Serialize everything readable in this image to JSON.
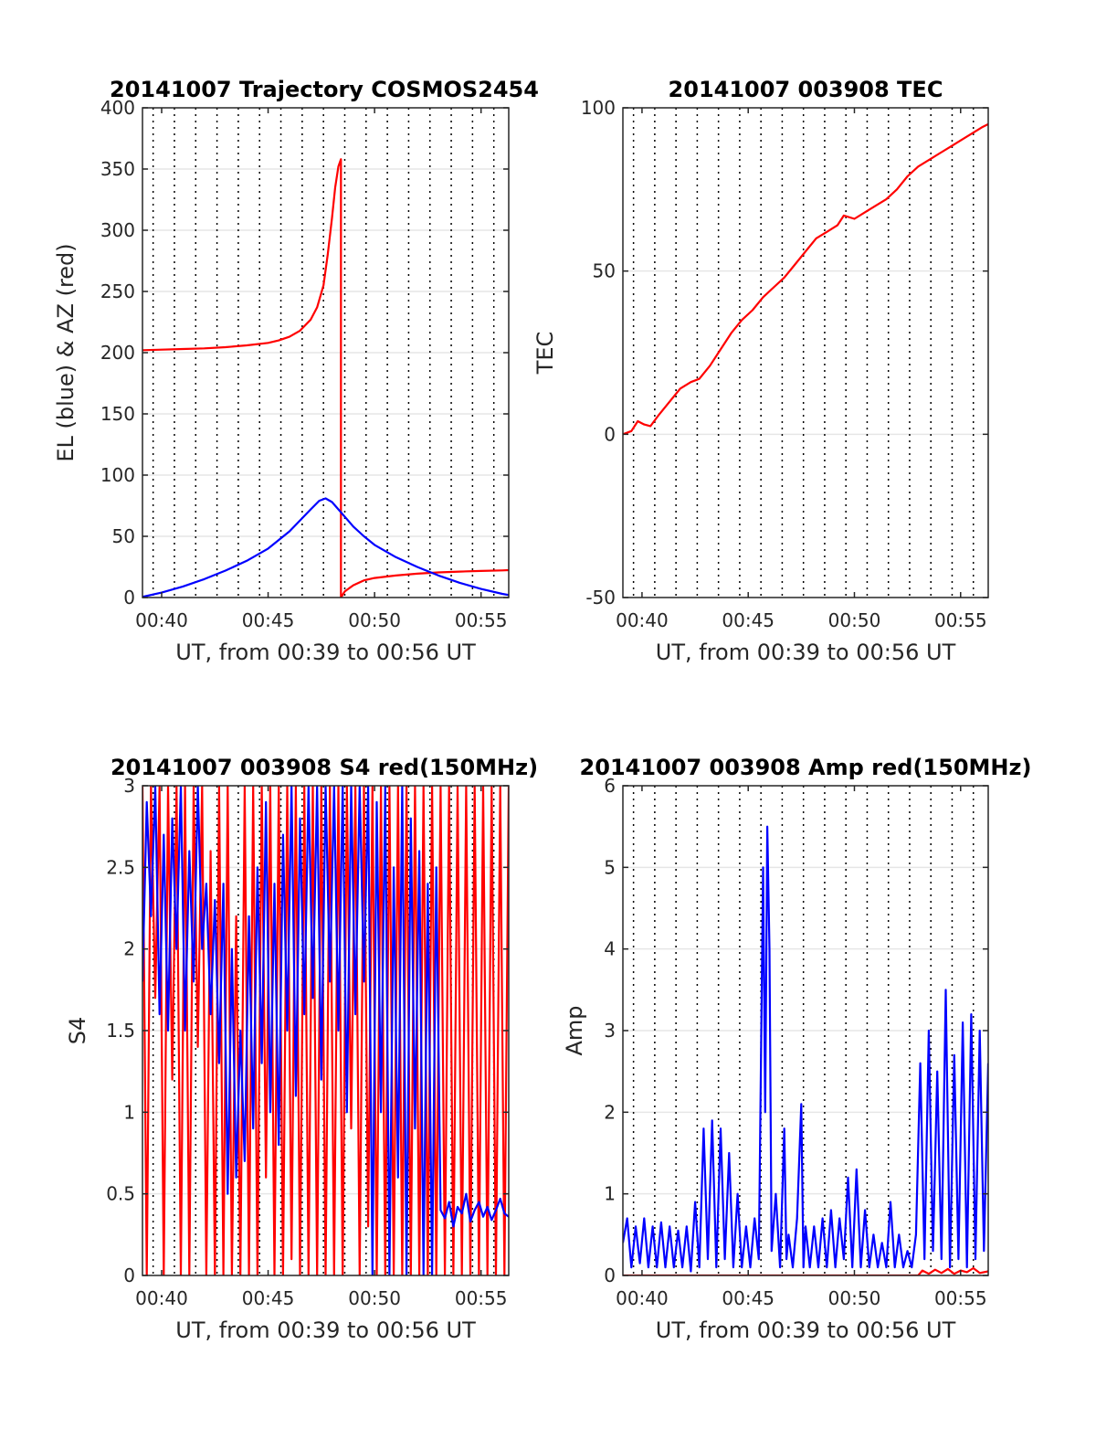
{
  "chart_data": [
    {
      "type": "line",
      "title": "20141007 Trajectory COSMOS2454",
      "xlabel": "UT, from 00:39 to 00:56 UT",
      "ylabel": "EL (blue) & AZ (red)",
      "x_unit": "minutes past 00:00 UT",
      "xlim": [
        39.1,
        56.3
      ],
      "ylim": [
        0,
        400
      ],
      "xticks": [
        40,
        45,
        50,
        55
      ],
      "xtick_labels": [
        "00:40",
        "00:45",
        "00:50",
        "00:55"
      ],
      "yticks": [
        0,
        50,
        100,
        150,
        200,
        250,
        300,
        350,
        400
      ],
      "ytick_labels": [
        "0",
        "50",
        "100",
        "150",
        "200",
        "250",
        "300",
        "350",
        "400"
      ],
      "grid": true,
      "series": [
        {
          "color": "#ff0000",
          "x": [
            39.1,
            40,
            41,
            42,
            43,
            44,
            45,
            45.5,
            46,
            46.5,
            47,
            47.3,
            47.6,
            47.8,
            48.0,
            48.15,
            48.3,
            48.42,
            48.42,
            48.42,
            48.6,
            49,
            49.5,
            50,
            51,
            52,
            53,
            54,
            55,
            56,
            56.3
          ],
          "y": [
            202,
            202.5,
            203,
            203.5,
            204.5,
            206,
            208,
            210,
            213,
            218,
            227,
            237,
            255,
            280,
            310,
            335,
            352,
            358,
            200,
            0,
            5,
            10,
            14,
            16,
            18,
            19.5,
            20.5,
            21.2,
            21.7,
            22.2,
            22.4
          ]
        },
        {
          "color": "#0000ff",
          "x": [
            39.1,
            40,
            41,
            42,
            43,
            44,
            45,
            46,
            46.5,
            47,
            47.4,
            47.7,
            48.0,
            48.3,
            48.7,
            49,
            49.5,
            50,
            51,
            52,
            53,
            54,
            55,
            56,
            56.3
          ],
          "y": [
            0.5,
            4,
            9,
            15,
            22,
            30,
            40,
            54,
            63,
            72,
            79,
            81,
            78,
            72,
            64,
            58,
            50,
            43,
            33,
            25,
            18,
            12,
            7,
            3,
            2
          ]
        }
      ]
    },
    {
      "type": "line",
      "title": "20141007 003908 TEC",
      "xlabel": "UT, from 00:39 to 00:56 UT",
      "ylabel": "TEC",
      "x_unit": "minutes past 00:00 UT",
      "xlim": [
        39.1,
        56.3
      ],
      "ylim": [
        -50,
        100
      ],
      "xticks": [
        40,
        45,
        50,
        55
      ],
      "xtick_labels": [
        "00:40",
        "00:45",
        "00:50",
        "00:55"
      ],
      "yticks": [
        -50,
        0,
        50,
        100
      ],
      "ytick_labels": [
        "-50",
        "0",
        "50",
        "100"
      ],
      "grid": true,
      "series": [
        {
          "color": "#ff0000",
          "x": [
            39.1,
            39.5,
            39.8,
            40.1,
            40.4,
            40.8,
            41.3,
            41.8,
            42.3,
            42.7,
            43.2,
            43.7,
            44.2,
            44.7,
            45.2,
            45.7,
            46.2,
            46.7,
            47.2,
            47.7,
            48.2,
            48.7,
            49.2,
            49.5,
            50.0,
            50.5,
            51.0,
            51.5,
            52.0,
            52.5,
            53.0,
            53.5,
            54.0,
            54.5,
            55.0,
            55.5,
            56.0,
            56.3
          ],
          "y": [
            0,
            1,
            4,
            3,
            2.5,
            6,
            10,
            14,
            16,
            17,
            21,
            26,
            31,
            35,
            38,
            42,
            45,
            48,
            52,
            56,
            60,
            62,
            64,
            67,
            66,
            68,
            70,
            72,
            75,
            79,
            82,
            84,
            86,
            88,
            90,
            92,
            94,
            95
          ]
        }
      ]
    },
    {
      "type": "line",
      "title": "20141007 003908 S4 red(150MHz)",
      "xlabel": "UT, from 00:39 to 00:56 UT",
      "ylabel": "S4",
      "x_unit": "minutes past 00:00 UT",
      "xlim": [
        39.1,
        56.3
      ],
      "ylim": [
        0,
        3
      ],
      "xticks": [
        40,
        45,
        50,
        55
      ],
      "xtick_labels": [
        "00:40",
        "00:45",
        "00:50",
        "00:55"
      ],
      "yticks": [
        0,
        0.5,
        1,
        1.5,
        2,
        2.5,
        3
      ],
      "ytick_labels": [
        "0",
        "0.5",
        "1",
        "1.5",
        "2",
        "2.5",
        "3"
      ],
      "grid": true,
      "series": [
        {
          "color": "#ff0000",
          "x": [
            39.1,
            39.3,
            39.5,
            39.7,
            39.9,
            40.1,
            40.3,
            40.5,
            40.7,
            40.9,
            41.1,
            41.3,
            41.5,
            41.7,
            41.9,
            42.1,
            42.3,
            42.5,
            42.7,
            42.9,
            43.1,
            43.3,
            43.5,
            43.7,
            43.9,
            44.1,
            44.3,
            44.5,
            44.7,
            44.9,
            45.1,
            45.3,
            45.5,
            45.7,
            45.9,
            46.1,
            46.3,
            46.5,
            46.7,
            46.9,
            47.1,
            47.3,
            47.5,
            47.7,
            47.9,
            48.1,
            48.3,
            48.5,
            48.7,
            48.9,
            49.1,
            49.3,
            49.5,
            49.7,
            49.9,
            50.1,
            50.3,
            50.5,
            50.7,
            50.9,
            51.1,
            51.3,
            51.5,
            51.7,
            51.9,
            52.1,
            52.3,
            52.5,
            52.7,
            52.9,
            53.1,
            53.3,
            53.5,
            53.7,
            53.9,
            54.1,
            54.3,
            54.5,
            54.7,
            54.9,
            55.1,
            55.3,
            55.5,
            55.7,
            55.9,
            56.1,
            56.3
          ],
          "y": [
            3,
            0,
            3,
            1.7,
            3,
            0,
            3,
            1.2,
            3,
            0,
            3,
            0,
            3,
            1.4,
            3,
            0,
            2.6,
            0,
            3,
            0,
            3,
            0,
            2.2,
            0,
            3,
            0,
            3,
            0,
            3,
            0.6,
            3,
            0,
            3,
            0,
            3,
            0.1,
            3,
            0,
            3,
            0,
            3,
            0,
            3,
            0,
            3,
            0,
            3,
            0,
            3,
            0.9,
            3,
            0,
            3,
            0.3,
            3,
            0,
            3,
            0,
            3,
            0,
            3,
            0,
            3,
            0,
            3,
            0,
            3,
            0,
            3,
            0,
            3,
            0,
            3,
            0,
            3,
            0,
            3,
            0,
            3,
            0,
            3,
            0,
            3,
            0,
            3,
            0,
            3
          ]
        },
        {
          "color": "#0000ff",
          "x": [
            39.1,
            39.3,
            39.5,
            39.7,
            39.9,
            40.1,
            40.3,
            40.5,
            40.7,
            40.9,
            41.1,
            41.3,
            41.5,
            41.7,
            41.9,
            42.1,
            42.3,
            42.5,
            42.7,
            42.9,
            43.1,
            43.3,
            43.5,
            43.7,
            43.9,
            44.1,
            44.3,
            44.5,
            44.7,
            44.9,
            45.1,
            45.3,
            45.5,
            45.7,
            45.9,
            46.1,
            46.3,
            46.5,
            46.7,
            46.9,
            47.1,
            47.3,
            47.5,
            47.7,
            47.9,
            48.1,
            48.3,
            48.5,
            48.7,
            48.9,
            49.1,
            49.3,
            49.5,
            49.7,
            49.9,
            50.1,
            50.3,
            50.5,
            50.7,
            50.9,
            51.1,
            51.3,
            51.5,
            51.7,
            51.9,
            52.1,
            52.3,
            52.5,
            52.7,
            52.9,
            53.1,
            53.3,
            53.5,
            53.7,
            53.9,
            54.1,
            54.3,
            54.5,
            54.7,
            54.9,
            55.1,
            55.3,
            55.5,
            55.7,
            55.9,
            56.1,
            56.3
          ],
          "y": [
            1.8,
            2.9,
            2.2,
            3,
            1.6,
            2.7,
            1.5,
            2.8,
            2.0,
            3,
            1.5,
            2.6,
            1.8,
            3,
            2.0,
            2.4,
            1.6,
            2.3,
            1.3,
            2.4,
            0.5,
            2.0,
            0.6,
            1.5,
            0.7,
            2.2,
            0.9,
            2.5,
            1.3,
            2.9,
            1.0,
            2.4,
            0.8,
            2.7,
            1.5,
            3,
            1.1,
            2.8,
            1.6,
            3,
            1.7,
            3,
            1.2,
            3,
            1.8,
            3,
            1.5,
            3,
            1.0,
            3,
            1.6,
            3,
            1.8,
            3,
            0,
            2.9,
            1.0,
            3,
            0,
            2.5,
            0.6,
            3,
            0,
            2.8,
            0.9,
            2.6,
            0,
            2.4,
            0,
            2.5,
            0.4,
            0.35,
            0.45,
            0.3,
            0.42,
            0.38,
            0.5,
            0.33,
            0.4,
            0.45,
            0.36,
            0.42,
            0.34,
            0.4,
            0.47,
            0.38,
            0.36
          ]
        }
      ]
    },
    {
      "type": "line",
      "title": "20141007 003908 Amp red(150MHz)",
      "xlabel": "UT, from 00:39 to 00:56 UT",
      "ylabel": "Amp",
      "x_unit": "minutes past 00:00 UT",
      "xlim": [
        39.1,
        56.3
      ],
      "ylim": [
        0,
        6
      ],
      "xticks": [
        40,
        45,
        50,
        55
      ],
      "xtick_labels": [
        "00:40",
        "00:45",
        "00:50",
        "00:55"
      ],
      "yticks": [
        0,
        1,
        2,
        3,
        4,
        5,
        6
      ],
      "ytick_labels": [
        "0",
        "1",
        "2",
        "3",
        "4",
        "5",
        "6"
      ],
      "grid": true,
      "series": [
        {
          "color": "#ff0000",
          "x": [
            39.1,
            53.0,
            53.2,
            53.5,
            53.8,
            54.1,
            54.4,
            54.7,
            55.0,
            55.3,
            55.6,
            55.9,
            56.3
          ],
          "y": [
            0,
            0,
            0.06,
            0.02,
            0.07,
            0.03,
            0.08,
            0.02,
            0.06,
            0.04,
            0.09,
            0.03,
            0.05
          ]
        },
        {
          "color": "#0000ff",
          "x": [
            39.1,
            39.3,
            39.5,
            39.7,
            39.9,
            40.1,
            40.3,
            40.5,
            40.7,
            40.9,
            41.1,
            41.3,
            41.5,
            41.7,
            41.9,
            42.1,
            42.3,
            42.5,
            42.7,
            42.9,
            43.1,
            43.3,
            43.5,
            43.7,
            43.9,
            44.1,
            44.3,
            44.5,
            44.7,
            44.9,
            45.1,
            45.3,
            45.5,
            45.7,
            45.8,
            45.9,
            46.0,
            46.1,
            46.3,
            46.5,
            46.7,
            46.8,
            46.9,
            47.1,
            47.3,
            47.5,
            47.6,
            47.7,
            47.9,
            48.1,
            48.3,
            48.5,
            48.7,
            48.9,
            49.1,
            49.3,
            49.5,
            49.7,
            49.9,
            50.1,
            50.3,
            50.5,
            50.7,
            50.9,
            51.1,
            51.3,
            51.5,
            51.7,
            51.9,
            52.1,
            52.3,
            52.5,
            52.7,
            52.9,
            53.1,
            53.3,
            53.5,
            53.7,
            53.9,
            54.1,
            54.3,
            54.5,
            54.7,
            54.9,
            55.1,
            55.3,
            55.5,
            55.7,
            55.9,
            56.1,
            56.3
          ],
          "y": [
            0.4,
            0.7,
            0.1,
            0.6,
            0.15,
            0.7,
            0.1,
            0.6,
            0.1,
            0.65,
            0.1,
            0.6,
            0.1,
            0.55,
            0.1,
            0.6,
            0.05,
            0.9,
            0.1,
            1.8,
            0.2,
            1.9,
            0.1,
            1.8,
            0.2,
            1.5,
            0.1,
            1.0,
            0.1,
            0.6,
            0.1,
            0.7,
            0.2,
            5.0,
            2.0,
            5.5,
            4.0,
            0.3,
            1.0,
            0.1,
            1.8,
            0.2,
            0.5,
            0.1,
            0.7,
            2.1,
            0.1,
            0.6,
            0.1,
            0.6,
            0.1,
            0.7,
            0.1,
            0.8,
            0.1,
            0.7,
            0.2,
            1.2,
            0.1,
            1.3,
            0.1,
            0.8,
            0.1,
            0.5,
            0.1,
            0.4,
            0.1,
            0.9,
            0.1,
            0.5,
            0.1,
            0.3,
            0.1,
            0.5,
            2.6,
            0.2,
            3.0,
            0.3,
            2.5,
            0.2,
            3.5,
            0.1,
            2.7,
            0.2,
            3.1,
            0.1,
            3.2,
            0.2,
            3.0,
            0.3,
            2.6
          ]
        }
      ]
    }
  ]
}
